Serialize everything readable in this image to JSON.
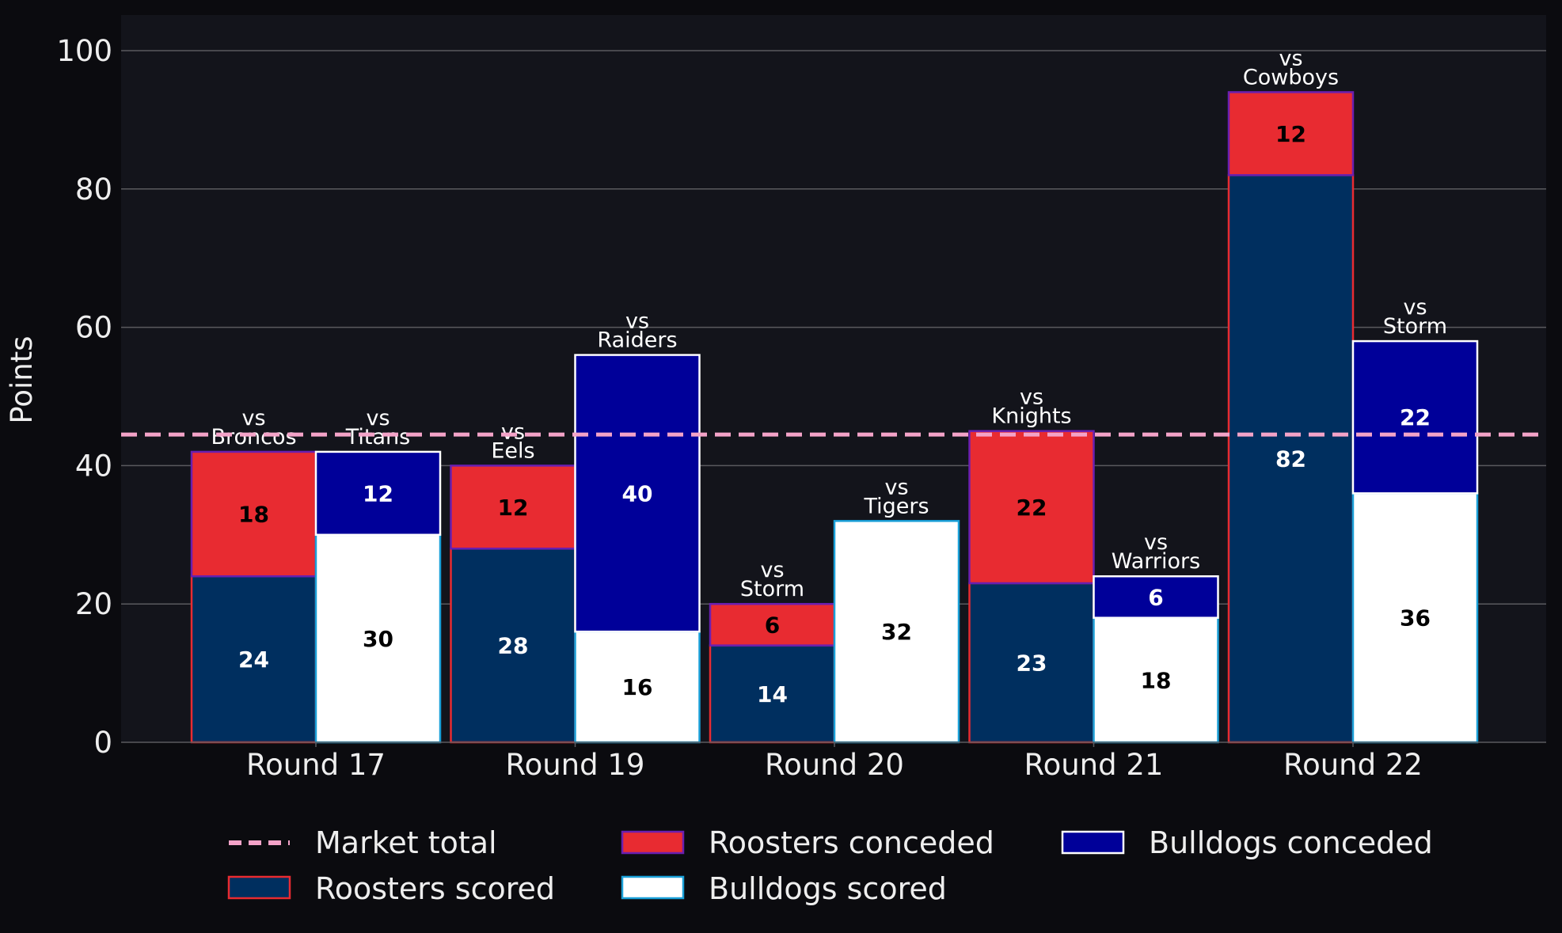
{
  "chart_data": {
    "type": "bar",
    "ylabel": "Points",
    "ylim": [
      0,
      105
    ],
    "yticks": [
      "0",
      "20",
      "40",
      "60",
      "80",
      "100"
    ],
    "grid": true,
    "categories": [
      "Round 17",
      "Round 19",
      "Round 20",
      "Round 21",
      "Round 22"
    ],
    "market_total": 44.5,
    "market_total_label": "Market total",
    "series": [
      {
        "name": "Roosters scored",
        "team": "Roosters",
        "part": "scored",
        "values": [
          24,
          28,
          14,
          23,
          82
        ]
      },
      {
        "name": "Roosters conceded",
        "team": "Roosters",
        "part": "conceded",
        "values": [
          18,
          12,
          6,
          22,
          12
        ]
      },
      {
        "name": "Bulldogs scored",
        "team": "Bulldogs",
        "part": "scored",
        "values": [
          30,
          16,
          32,
          18,
          36
        ]
      },
      {
        "name": "Bulldogs conceded",
        "team": "Bulldogs",
        "part": "conceded",
        "values": [
          12,
          40,
          0,
          6,
          22
        ]
      }
    ],
    "opponents": {
      "Roosters": [
        [
          "vs",
          "Broncos"
        ],
        [
          "vs",
          "Eels"
        ],
        [
          "vs",
          "Storm"
        ],
        [
          "vs",
          "Knights"
        ],
        [
          "vs",
          "Cowboys"
        ]
      ],
      "Bulldogs": [
        [
          "vs",
          "Titans"
        ],
        [
          "vs",
          "Raiders"
        ],
        [
          "vs",
          "Tigers"
        ],
        [
          "vs",
          "Warriors"
        ],
        [
          "vs",
          "Storm"
        ]
      ]
    },
    "legend": {
      "placement": "bottom",
      "entries": [
        "Market total",
        "Roosters scored",
        "Roosters conceded",
        "Bulldogs scored",
        "Bulldogs conceded"
      ]
    },
    "colors": {
      "background": "#0b0b0f",
      "plot_background": "#13141b",
      "grid": "#5a5a5e",
      "text": "#eeeeee",
      "roosters_scored": "#002f5f",
      "roosters_conceded": "#e82b31",
      "roosters_edge": "#e82b31",
      "roosters_conceded_edge": "#6a1fb0",
      "bulldogs_scored": "#ffffff",
      "bulldogs_conceded": "#000099",
      "bulldogs_edge": "#1aa0d8",
      "bulldogs_conceded_edge": "#ffffff",
      "market_line": "#f4a3c8"
    }
  }
}
